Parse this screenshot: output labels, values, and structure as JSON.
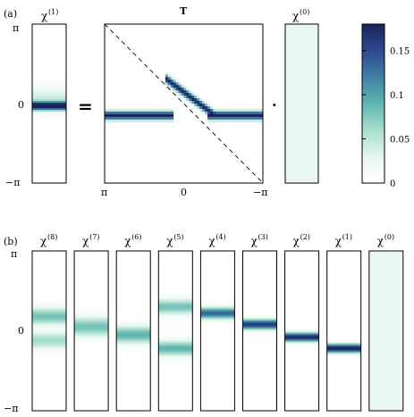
{
  "figure": {
    "panel_a_label": "(a)",
    "panel_b_label": "(b)",
    "equals_sign": "=",
    "dot_sign": "·"
  },
  "panel_a": {
    "chi1_title": "χ",
    "chi1_sup": "(1)",
    "T_title": "T",
    "chi0_title": "χ",
    "chi0_sup": "(0)",
    "y_ticks": [
      "π",
      "0",
      "−π"
    ],
    "x_ticks": [
      "π",
      "0",
      "−π"
    ]
  },
  "colorbar": {
    "ticks": [
      "0.15",
      "0.1",
      "0.05",
      "0"
    ],
    "tick_values": [
      0.15,
      0.1,
      0.05,
      0
    ],
    "range": [
      0,
      0.18
    ],
    "colors": [
      "#ffffff",
      "#eaf7f1",
      "#a9dfce",
      "#5fb5b0",
      "#3f7fa5",
      "#2c4a8f",
      "#1a2358"
    ]
  },
  "panel_b": {
    "y_ticks": [
      "π",
      "0",
      "−π"
    ],
    "strips": [
      {
        "symbol": "χ",
        "sup": "(8)",
        "bands": [
          {
            "center": 0.18,
            "width": 0.08,
            "peak": 0.45
          },
          {
            "center": -0.12,
            "width": 0.08,
            "peak": 0.35
          }
        ]
      },
      {
        "symbol": "χ",
        "sup": "(7)",
        "bands": [
          {
            "center": 0.05,
            "width": 0.09,
            "peak": 0.45
          }
        ]
      },
      {
        "symbol": "χ",
        "sup": "(6)",
        "bands": [
          {
            "center": -0.05,
            "width": 0.08,
            "peak": 0.5
          }
        ]
      },
      {
        "symbol": "χ",
        "sup": "(5)",
        "bands": [
          {
            "center": 0.3,
            "width": 0.07,
            "peak": 0.45
          },
          {
            "center": -0.22,
            "width": 0.07,
            "peak": 0.5
          }
        ]
      },
      {
        "symbol": "χ",
        "sup": "(4)",
        "bands": [
          {
            "center": 0.22,
            "width": 0.05,
            "peak": 0.75
          }
        ]
      },
      {
        "symbol": "χ",
        "sup": "(3)",
        "bands": [
          {
            "center": 0.08,
            "width": 0.045,
            "peak": 0.9
          }
        ]
      },
      {
        "symbol": "χ",
        "sup": "(2)",
        "bands": [
          {
            "center": -0.08,
            "width": 0.04,
            "peak": 0.98
          }
        ]
      },
      {
        "symbol": "χ",
        "sup": "(1)",
        "bands": [
          {
            "center": -0.22,
            "width": 0.04,
            "peak": 1.0
          }
        ]
      },
      {
        "symbol": "χ",
        "sup": "(0)",
        "bands": [],
        "uniform": 0.08
      }
    ]
  }
}
